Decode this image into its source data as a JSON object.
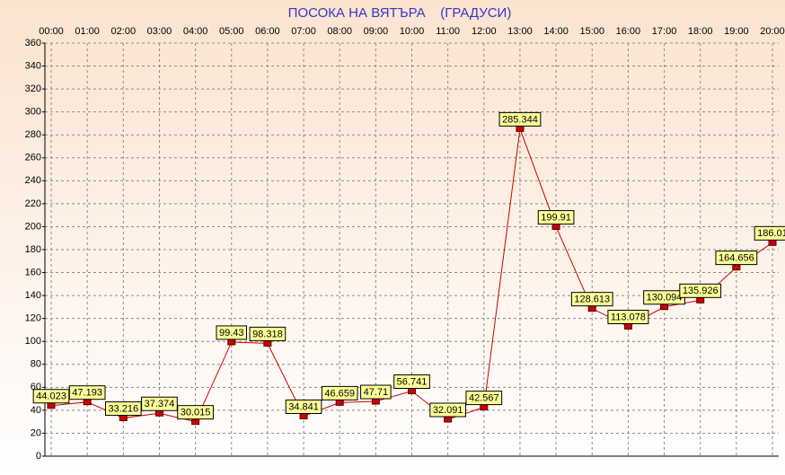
{
  "chart_data": {
    "type": "line",
    "title": "ПОСОКА НА ВЯТЪРА    (ГРАДУСИ)",
    "categories": [
      "00:00",
      "01:00",
      "02:00",
      "03:00",
      "04:00",
      "05:00",
      "06:00",
      "07:00",
      "08:00",
      "09:00",
      "10:00",
      "11:00",
      "12:00",
      "13:00",
      "14:00",
      "15:00",
      "16:00",
      "17:00",
      "18:00",
      "19:00",
      "20:00"
    ],
    "values": [
      44.023,
      47.193,
      33.216,
      37.374,
      30.015,
      99.43,
      98.318,
      34.841,
      46.659,
      47.71,
      56.741,
      32.091,
      42.567,
      285.344,
      199.91,
      128.613,
      113.078,
      130.094,
      135.926,
      164.656,
      186.01
    ],
    "color": "#cc0000",
    "ylim": [
      0,
      360
    ],
    "yticks": [
      0,
      20,
      40,
      60,
      80,
      100,
      120,
      140,
      160,
      180,
      200,
      220,
      240,
      260,
      280,
      300,
      320,
      340,
      360
    ],
    "grid": true
  }
}
